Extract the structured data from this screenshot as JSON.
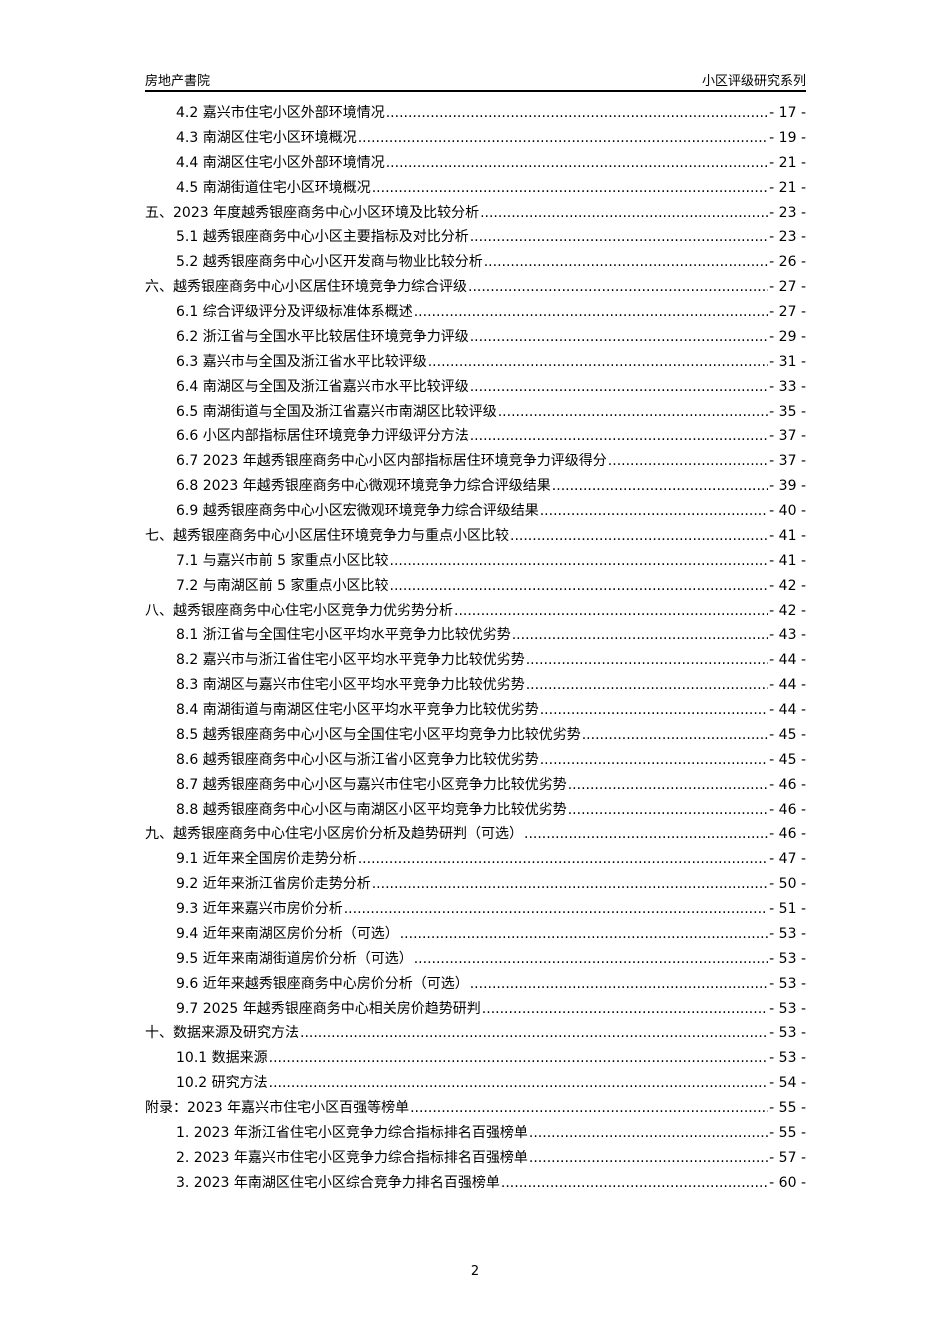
{
  "header": {
    "left": "房地产書院",
    "right": "小区评级研究系列"
  },
  "toc": [
    {
      "level": 1,
      "title": "4.2 嘉兴市住宅小区外部环境情况",
      "page": "- 17 -"
    },
    {
      "level": 1,
      "title": "4.3 南湖区住宅小区环境概况",
      "page": "- 19 -"
    },
    {
      "level": 1,
      "title": "4.4 南湖区住宅小区外部环境情况",
      "page": "- 21 -"
    },
    {
      "level": 1,
      "title": "4.5 南湖街道住宅小区环境概况",
      "page": "- 21 -"
    },
    {
      "level": 0,
      "title": "五、2023 年度越秀银座商务中心小区环境及比较分析",
      "page": "- 23 -"
    },
    {
      "level": 1,
      "title": "5.1 越秀银座商务中心小区主要指标及对比分析",
      "page": "- 23 -"
    },
    {
      "level": 1,
      "title": "5.2 越秀银座商务中心小区开发商与物业比较分析",
      "page": "- 26 -"
    },
    {
      "level": 0,
      "title": "六、越秀银座商务中心小区居住环境竞争力综合评级",
      "page": "- 27 -"
    },
    {
      "level": 1,
      "title": "6.1 综合评级评分及评级标准体系概述",
      "page": "- 27 -"
    },
    {
      "level": 1,
      "title": "6.2 浙江省与全国水平比较居住环境竞争力评级",
      "page": "- 29 -"
    },
    {
      "level": 1,
      "title": "6.3 嘉兴市与全国及浙江省水平比较评级",
      "page": "- 31 -"
    },
    {
      "level": 1,
      "title": "6.4 南湖区与全国及浙江省嘉兴市水平比较评级",
      "page": "- 33 -"
    },
    {
      "level": 1,
      "title": "6.5 南湖街道与全国及浙江省嘉兴市南湖区比较评级",
      "page": "- 35 -"
    },
    {
      "level": 1,
      "title": "6.6 小区内部指标居住环境竞争力评级评分方法",
      "page": "- 37 -"
    },
    {
      "level": 1,
      "title": "6.7 2023 年越秀银座商务中心小区内部指标居住环境竞争力评级得分",
      "page": "- 37 -"
    },
    {
      "level": 1,
      "title": "6.8 2023 年越秀银座商务中心微观环境竞争力综合评级结果",
      "page": "- 39 -"
    },
    {
      "level": 1,
      "title": "6.9 越秀银座商务中心小区宏微观环境竞争力综合评级结果",
      "page": "- 40 -"
    },
    {
      "level": 0,
      "title": "七、越秀银座商务中心小区居住环境竞争力与重点小区比较",
      "page": "- 41 -"
    },
    {
      "level": 1,
      "title": "7.1 与嘉兴市前 5 家重点小区比较",
      "page": "- 41 -"
    },
    {
      "level": 1,
      "title": "7.2 与南湖区前 5 家重点小区比较",
      "page": "- 42 -"
    },
    {
      "level": 0,
      "title": "八、越秀银座商务中心住宅小区竞争力优劣势分析",
      "page": "- 42 -"
    },
    {
      "level": 1,
      "title": "8.1 浙江省与全国住宅小区平均水平竞争力比较优劣势",
      "page": "- 43 -"
    },
    {
      "level": 1,
      "title": "8.2 嘉兴市与浙江省住宅小区平均水平竞争力比较优劣势",
      "page": "- 44 -"
    },
    {
      "level": 1,
      "title": "8.3 南湖区与嘉兴市住宅小区平均水平竞争力比较优劣势",
      "page": "- 44 -"
    },
    {
      "level": 1,
      "title": "8.4 南湖街道与南湖区住宅小区平均水平竞争力比较优劣势",
      "page": "- 44 -"
    },
    {
      "level": 1,
      "title": "8.5 越秀银座商务中心小区与全国住宅小区平均竞争力比较优劣势",
      "page": "- 45 -"
    },
    {
      "level": 1,
      "title": "8.6 越秀银座商务中心小区与浙江省小区竞争力比较优劣势",
      "page": "- 45 -"
    },
    {
      "level": 1,
      "title": "8.7 越秀银座商务中心小区与嘉兴市住宅小区竞争力比较优劣势",
      "page": "- 46 -"
    },
    {
      "level": 1,
      "title": "8.8 越秀银座商务中心小区与南湖区小区平均竞争力比较优劣势",
      "page": "- 46 -"
    },
    {
      "level": 0,
      "title": "九、越秀银座商务中心住宅小区房价分析及趋势研判（可选）",
      "page": "- 46 -"
    },
    {
      "level": 1,
      "title": "9.1 近年来全国房价走势分析",
      "page": "- 47 -"
    },
    {
      "level": 1,
      "title": "9.2 近年来浙江省房价走势分析",
      "page": "- 50 -"
    },
    {
      "level": 1,
      "title": "9.3 近年来嘉兴市房价分析",
      "page": "- 51 -"
    },
    {
      "level": 1,
      "title": "9.4 近年来南湖区房价分析（可选）",
      "page": "- 53 -"
    },
    {
      "level": 1,
      "title": "9.5 近年来南湖街道房价分析（可选）",
      "page": "- 53 -"
    },
    {
      "level": 1,
      "title": "9.6 近年来越秀银座商务中心房价分析（可选）",
      "page": "- 53 -"
    },
    {
      "level": 1,
      "title": "9.7 2025 年越秀银座商务中心相关房价趋势研判",
      "page": "- 53 -"
    },
    {
      "level": 0,
      "title": "十、数据来源及研究方法",
      "page": "- 53 -"
    },
    {
      "level": 1,
      "title": "10.1 数据来源",
      "page": "- 53 -"
    },
    {
      "level": 1,
      "title": "10.2 研究方法",
      "page": "- 54 -"
    },
    {
      "level": 0,
      "title": "附录：2023 年嘉兴市住宅小区百强等榜单",
      "page": "- 55 -"
    },
    {
      "level": 1,
      "title": "1.  2023 年浙江省住宅小区竞争力综合指标排名百强榜单",
      "page": "- 55 -"
    },
    {
      "level": 1,
      "title": "2.  2023 年嘉兴市住宅小区竞争力综合指标排名百强榜单",
      "page": "- 57 -"
    },
    {
      "level": 1,
      "title": "3.  2023 年南湖区住宅小区综合竞争力排名百强榜单",
      "page": "- 60 -"
    }
  ],
  "footer": {
    "page_number": "2"
  }
}
